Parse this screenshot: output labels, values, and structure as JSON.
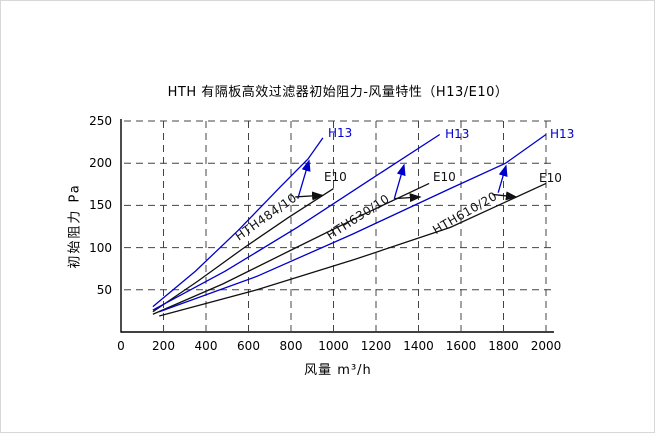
{
  "colors": {
    "h13": "#0000cc",
    "e10": "#111111",
    "grid": "#444444",
    "axis": "#000000"
  },
  "chart_data": {
    "type": "line",
    "title": "HTH 有隔板高效过滤器初始阻力-风量特性（H13/E10）",
    "xlabel": "风量  m³/h",
    "ylabel": "初始阻力 Pa",
    "xlim": [
      0,
      2000
    ],
    "ylim": [
      0,
      250
    ],
    "x_ticks": [
      0,
      200,
      400,
      600,
      800,
      1000,
      1200,
      1400,
      1600,
      1800,
      2000
    ],
    "y_ticks": [
      50,
      100,
      150,
      200,
      250
    ],
    "grid": "dashed",
    "legend_position": "none",
    "series": [
      {
        "name": "HTH484/10 H13",
        "filter_model": "HTH484/10",
        "grade": "H13",
        "color": "#0000cc",
        "points": [
          [
            150,
            30
          ],
          [
            350,
            72
          ],
          [
            550,
            120
          ],
          [
            750,
            172
          ],
          [
            880,
            205
          ],
          [
            950,
            230
          ]
        ],
        "end_label": {
          "text": "H13",
          "pos": [
            974,
            236
          ],
          "color": "#0000cc"
        }
      },
      {
        "name": "HTH484/10 E10",
        "filter_model": "HTH484/10",
        "grade": "E10",
        "color": "#111111",
        "points": [
          [
            150,
            24
          ],
          [
            360,
            60
          ],
          [
            580,
            100
          ],
          [
            790,
            136
          ],
          [
            1000,
            170
          ]
        ],
        "end_label": {
          "text": "E10",
          "pos": [
            955,
            184
          ],
          "color": "#111111"
        }
      },
      {
        "name": "HTH630/10 H13",
        "filter_model": "HTH630/10",
        "grade": "H13",
        "color": "#0000cc",
        "points": [
          [
            150,
            26
          ],
          [
            490,
            72
          ],
          [
            830,
            124
          ],
          [
            1170,
            180
          ],
          [
            1500,
            234
          ]
        ],
        "end_label": {
          "text": "H13",
          "pos": [
            1525,
            235
          ],
          "color": "#0000cc"
        }
      },
      {
        "name": "HTH630/10 E10",
        "filter_model": "HTH630/10",
        "grade": "E10",
        "color": "#111111",
        "points": [
          [
            150,
            21
          ],
          [
            480,
            57
          ],
          [
            800,
            97
          ],
          [
            1130,
            138
          ],
          [
            1450,
            176
          ]
        ],
        "end_label": {
          "text": "E10",
          "pos": [
            1468,
            184
          ],
          "color": "#111111"
        }
      },
      {
        "name": "HTH610/20 H13",
        "filter_model": "HTH610/20",
        "grade": "H13",
        "color": "#0000cc",
        "points": [
          [
            180,
            24
          ],
          [
            640,
            66
          ],
          [
            1090,
            116
          ],
          [
            1550,
            170
          ],
          [
            1810,
            200
          ],
          [
            2000,
            234
          ]
        ],
        "end_label": {
          "text": "H13",
          "pos": [
            2019,
            235
          ],
          "color": "#0000cc"
        }
      },
      {
        "name": "HTH610/20 E10",
        "filter_model": "HTH610/20",
        "grade": "E10",
        "color": "#111111",
        "points": [
          [
            180,
            19
          ],
          [
            640,
            50
          ],
          [
            1100,
            86
          ],
          [
            1550,
            124
          ],
          [
            2000,
            176
          ]
        ],
        "end_label": {
          "text": "E10",
          "pos": [
            1967,
            183
          ],
          "color": "#111111"
        }
      }
    ],
    "model_annotations": [
      {
        "text": "HTH484/10",
        "at": [
          682,
          136
        ],
        "angle": -35,
        "arrows": [
          {
            "from": [
              832,
              158
            ],
            "to": [
              885,
              203
            ],
            "color": "#0000cc"
          },
          {
            "from": [
              820,
              160
            ],
            "to": [
              948,
              162
            ],
            "color": "#111111"
          }
        ]
      },
      {
        "text": "HTH630/10",
        "at": [
          1115,
          136
        ],
        "angle": -33,
        "arrows": [
          {
            "from": [
              1286,
              158
            ],
            "to": [
              1332,
              198
            ],
            "color": "#0000cc"
          },
          {
            "from": [
              1286,
              158
            ],
            "to": [
              1408,
              160
            ],
            "color": "#111111"
          }
        ]
      },
      {
        "text": "HTH610/20",
        "at": [
          1619,
          141
        ],
        "angle": -30,
        "arrows": [
          {
            "from": [
              1775,
              165
            ],
            "to": [
              1812,
              197
            ],
            "color": "#0000cc"
          },
          {
            "from": [
              1748,
              163
            ],
            "to": [
              1860,
              160
            ],
            "color": "#111111"
          }
        ]
      }
    ]
  }
}
